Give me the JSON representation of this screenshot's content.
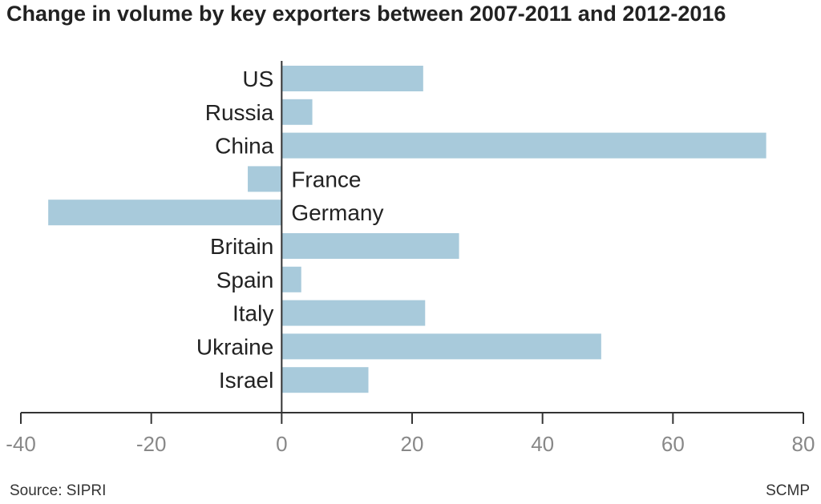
{
  "chart_data": {
    "type": "bar",
    "orientation": "horizontal",
    "title": "Change in volume by key exporters between 2007-2011 and 2012-2016",
    "categories": [
      "US",
      "Russia",
      "China",
      "France",
      "Germany",
      "Britain",
      "Spain",
      "Italy",
      "Ukraine",
      "Israel"
    ],
    "values": [
      21.7,
      4.7,
      74.3,
      -5.2,
      -35.8,
      27.2,
      3.0,
      22.0,
      49.0,
      13.3
    ],
    "xlim": [
      -40,
      80
    ],
    "xticks": [
      -40,
      -20,
      0,
      20,
      40,
      60,
      80
    ],
    "bar_color": "#a8cadb",
    "grid": false,
    "legend": "none"
  },
  "footer": {
    "source": "Source: SIPRI",
    "brand": "SCMP"
  }
}
